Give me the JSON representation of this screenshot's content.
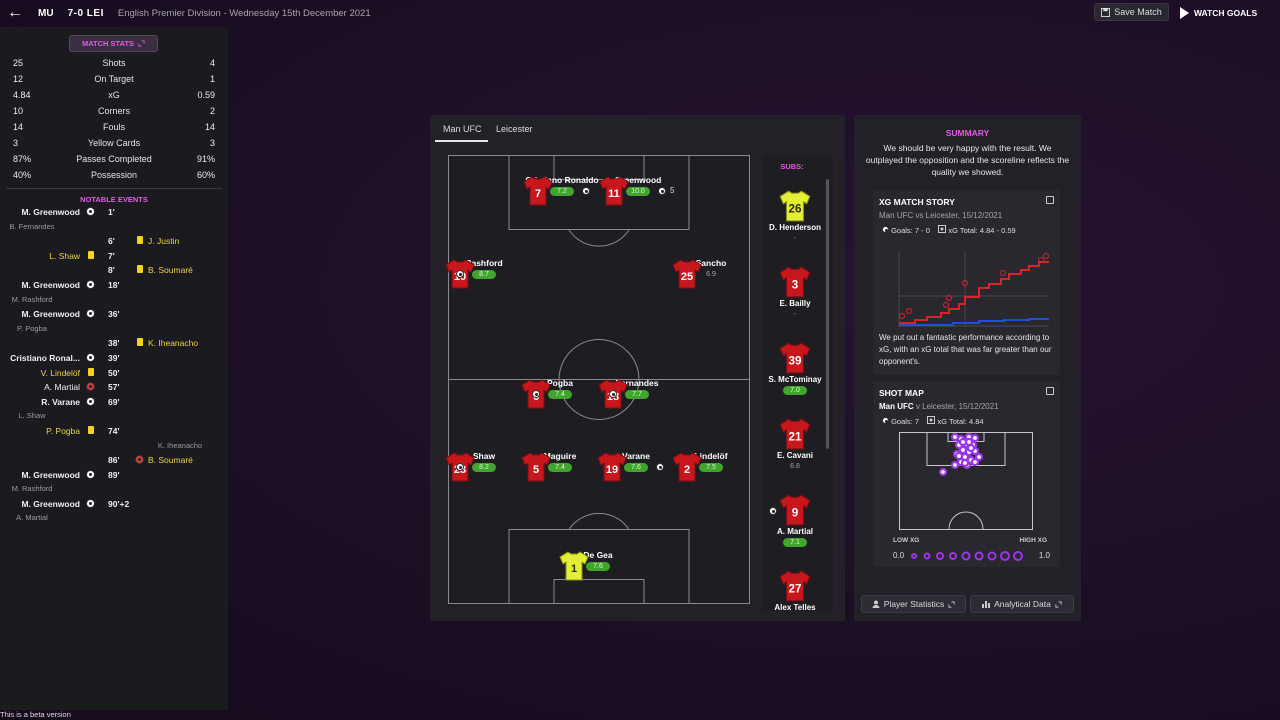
{
  "header": {
    "home_abbr": "MU",
    "score": "7-0",
    "away_abbr": "LEI",
    "competition": "English Premier Division - Wednesday 15th December 2021",
    "save_label": "Save Match",
    "watch_label": "WATCH GOALS"
  },
  "match_stats": {
    "button_label": "MATCH STATS",
    "rows": [
      {
        "home": "25",
        "label": "Shots",
        "away": "4"
      },
      {
        "home": "12",
        "label": "On Target",
        "away": "1"
      },
      {
        "home": "4.84",
        "label": "xG",
        "away": "0.59"
      },
      {
        "home": "10",
        "label": "Corners",
        "away": "2"
      },
      {
        "home": "14",
        "label": "Fouls",
        "away": "14"
      },
      {
        "home": "3",
        "label": "Yellow Cards",
        "away": "3"
      },
      {
        "home": "87%",
        "label": "Passes Completed",
        "away": "91%"
      },
      {
        "home": "40%",
        "label": "Possession",
        "away": "60%"
      }
    ]
  },
  "notable_events": {
    "title": "NOTABLE EVENTS",
    "items": [
      {
        "home": "M. Greenwood",
        "home_type": "goal",
        "minute": "1'",
        "away": "",
        "away_type": ""
      },
      {
        "home": "B. Fernandes",
        "home_type": "assist",
        "minute": "",
        "away": "",
        "away_type": ""
      },
      {
        "home": "",
        "home_type": "",
        "minute": "6'",
        "away": "J. Justin",
        "away_type": "yellow"
      },
      {
        "home": "L. Shaw",
        "home_type": "yellow",
        "minute": "7'",
        "away": "",
        "away_type": ""
      },
      {
        "home": "",
        "home_type": "",
        "minute": "8'",
        "away": "B. Soumaré",
        "away_type": "yellow"
      },
      {
        "home": "M. Greenwood",
        "home_type": "goal",
        "minute": "18'",
        "away": "",
        "away_type": ""
      },
      {
        "home": "M. Rashford",
        "home_type": "assist",
        "minute": "",
        "away": "",
        "away_type": ""
      },
      {
        "home": "M. Greenwood",
        "home_type": "goal",
        "minute": "36'",
        "away": "",
        "away_type": ""
      },
      {
        "home": "P. Pogba",
        "home_type": "assist",
        "minute": "",
        "away": "",
        "away_type": ""
      },
      {
        "home": "",
        "home_type": "",
        "minute": "38'",
        "away": "K. Iheanacho",
        "away_type": "yellow"
      },
      {
        "home": "Cristiano Ronal...",
        "home_type": "goal",
        "minute": "39'",
        "away": "",
        "away_type": ""
      },
      {
        "home": "V. Lindelöf",
        "home_type": "yellow",
        "minute": "50'",
        "away": "",
        "away_type": ""
      },
      {
        "home": "A. Martial",
        "home_type": "plainred",
        "minute": "57'",
        "away": "",
        "away_type": ""
      },
      {
        "home": "R. Varane",
        "home_type": "goal",
        "minute": "69'",
        "away": "",
        "away_type": ""
      },
      {
        "home": "L. Shaw",
        "home_type": "assist",
        "minute": "",
        "away": "",
        "away_type": ""
      },
      {
        "home": "P. Pogba",
        "home_type": "yellow",
        "minute": "74'",
        "away": "",
        "away_type": ""
      },
      {
        "home": "",
        "home_type": "",
        "minute": "",
        "away": "K. Iheanacho",
        "away_type": "assist"
      },
      {
        "home": "",
        "home_type": "",
        "minute": "86'",
        "away": "B. Soumaré",
        "away_type": "redball"
      },
      {
        "home": "M. Greenwood",
        "home_type": "goal",
        "minute": "89'",
        "away": "",
        "away_type": ""
      },
      {
        "home": "M. Rashford",
        "home_type": "assist",
        "minute": "",
        "away": "",
        "away_type": ""
      },
      {
        "home": "M. Greenwood",
        "home_type": "goal",
        "minute": "90'+2",
        "away": "",
        "away_type": ""
      },
      {
        "home": "A. Martial",
        "home_type": "assist",
        "minute": "",
        "away": "",
        "away_type": ""
      }
    ]
  },
  "lineup": {
    "tabs": [
      "Man UFC",
      "Leicester"
    ],
    "subs_title": "SUBS:",
    "players": [
      {
        "number": "7",
        "name": "Cristiano Ronaldo",
        "rating": "7.2",
        "rating_style": "g",
        "kit": "red",
        "ball_right": true,
        "ball_left": false,
        "goals": ""
      },
      {
        "number": "11",
        "name": "Greenwood",
        "rating": "10.0",
        "rating_style": "g",
        "kit": "red",
        "ball_right": true,
        "ball_left": false,
        "goals": "5"
      },
      {
        "number": "10",
        "name": "Rashford",
        "rating": "8.7",
        "rating_style": "g",
        "kit": "red",
        "ball_right": false,
        "ball_left": true,
        "goals": ""
      },
      {
        "number": "25",
        "name": "Sancho",
        "rating": "6.9",
        "rating_style": "n",
        "kit": "red",
        "ball_right": false,
        "ball_left": false,
        "goals": ""
      },
      {
        "number": "6",
        "name": "Pogba",
        "rating": "7.4",
        "rating_style": "g",
        "kit": "red",
        "ball_right": false,
        "ball_left": true,
        "goals": ""
      },
      {
        "number": "18",
        "name": "Fernandes",
        "rating": "7.7",
        "rating_style": "g",
        "kit": "red",
        "ball_right": false,
        "ball_left": true,
        "goals": ""
      },
      {
        "number": "23",
        "name": "Shaw",
        "rating": "8.2",
        "rating_style": "g",
        "kit": "red",
        "ball_right": false,
        "ball_left": true,
        "goals": ""
      },
      {
        "number": "5",
        "name": "Maguire",
        "rating": "7.4",
        "rating_style": "g",
        "kit": "red",
        "ball_right": false,
        "ball_left": false,
        "goals": ""
      },
      {
        "number": "19",
        "name": "Varane",
        "rating": "7.6",
        "rating_style": "g",
        "kit": "red",
        "ball_right": true,
        "ball_left": false,
        "goals": ""
      },
      {
        "number": "2",
        "name": "Lindelöf",
        "rating": "7.5",
        "rating_style": "g",
        "kit": "red",
        "ball_right": false,
        "ball_left": false,
        "goals": ""
      },
      {
        "number": "1",
        "name": "De Gea",
        "rating": "7.6",
        "rating_style": "g",
        "kit": "gk",
        "ball_right": false,
        "ball_left": false,
        "goals": ""
      }
    ],
    "subs": [
      {
        "number": "26",
        "name": "D. Henderson",
        "rating": "-",
        "rating_style": "n",
        "kit": "gk",
        "ball_left": false
      },
      {
        "number": "3",
        "name": "E. Bailly",
        "rating": "-",
        "rating_style": "n",
        "kit": "red",
        "ball_left": false
      },
      {
        "number": "39",
        "name": "S. McTominay",
        "rating": "7.0",
        "rating_style": "g",
        "kit": "red",
        "ball_left": false
      },
      {
        "number": "21",
        "name": "E. Cavani",
        "rating": "6.8",
        "rating_style": "n",
        "kit": "red",
        "ball_left": false
      },
      {
        "number": "9",
        "name": "A. Martial",
        "rating": "7.1",
        "rating_style": "g",
        "kit": "red",
        "ball_left": true
      },
      {
        "number": "27",
        "name": "Alex Telles",
        "rating": "",
        "rating_style": "n",
        "kit": "red",
        "ball_left": false
      }
    ]
  },
  "summary": {
    "title": "SUMMARY",
    "text": "We should be very happy with the result. We outplayed the opposition and the scoreline reflects the quality we showed."
  },
  "xg_story": {
    "title": "XG MATCH STORY",
    "subtitle": "Man UFC vs Leicester, 15/12/2021",
    "goals_label": "Goals: 7 - 0",
    "xg_label": "xG Total: 4.84 - 0.59",
    "text": "We put out a fantastic performance according to xG, with an xG total that was far greater than our opponent's.",
    "home_color": "#d8232a",
    "away_color": "#1f4fd6"
  },
  "shot_map": {
    "title": "SHOT MAP",
    "team": "Man UFC",
    "subtitle": "v Leicester, 15/12/2021",
    "goals_label": "Goals: 7",
    "xg_label": "xG Total: 4.84",
    "low_label": "LOW XG",
    "high_label": "HIGH XG",
    "min_label": "0.0",
    "max_label": "1.0",
    "accent": "#9b35e8"
  },
  "buttons": {
    "player_stats": "Player Statistics",
    "analytical": "Analytical Data"
  },
  "footer": {
    "beta": "This is a beta version"
  }
}
